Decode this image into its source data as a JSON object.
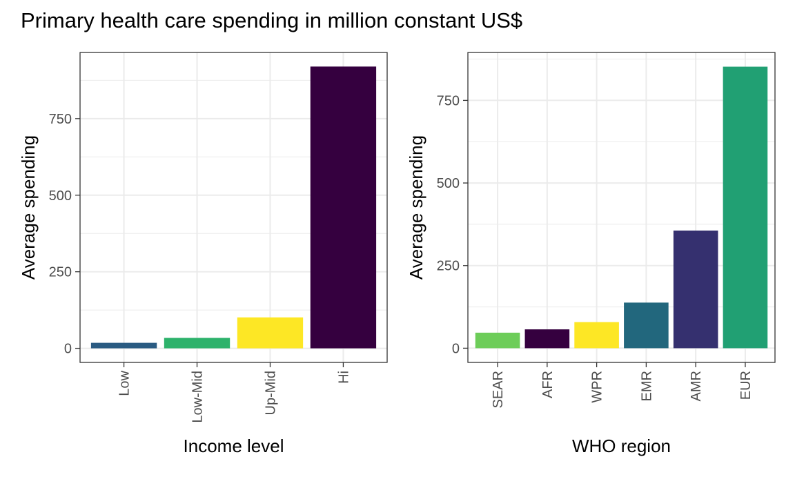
{
  "title": "Primary health care spending in million constant US$",
  "chart_data": [
    {
      "type": "bar",
      "categories": [
        "Low",
        "Low-Mid",
        "Up-Mid",
        "Hi"
      ],
      "values": [
        18,
        34,
        101,
        920
      ],
      "colors": [
        "#2A5B82",
        "#2DB26B",
        "#FDE725",
        "#35003F"
      ],
      "xlabel": "Income level",
      "ylabel": "Average spending",
      "yticks": [
        0,
        250,
        500,
        750
      ],
      "ylim": [
        -46,
        966
      ],
      "grid": true,
      "legend": "none"
    },
    {
      "type": "bar",
      "categories": [
        "SEAR",
        "AFR",
        "WPR",
        "EMR",
        "AMR",
        "EUR"
      ],
      "values": [
        47,
        57,
        79,
        138,
        356,
        852
      ],
      "colors": [
        "#6DCD59",
        "#35003F",
        "#FDE725",
        "#22677D",
        "#35306F",
        "#21A073"
      ],
      "xlabel": "WHO region",
      "ylabel": "Average spending",
      "yticks": [
        0,
        250,
        500,
        750
      ],
      "ylim": [
        -43,
        895
      ],
      "grid": true,
      "legend": "none"
    }
  ]
}
